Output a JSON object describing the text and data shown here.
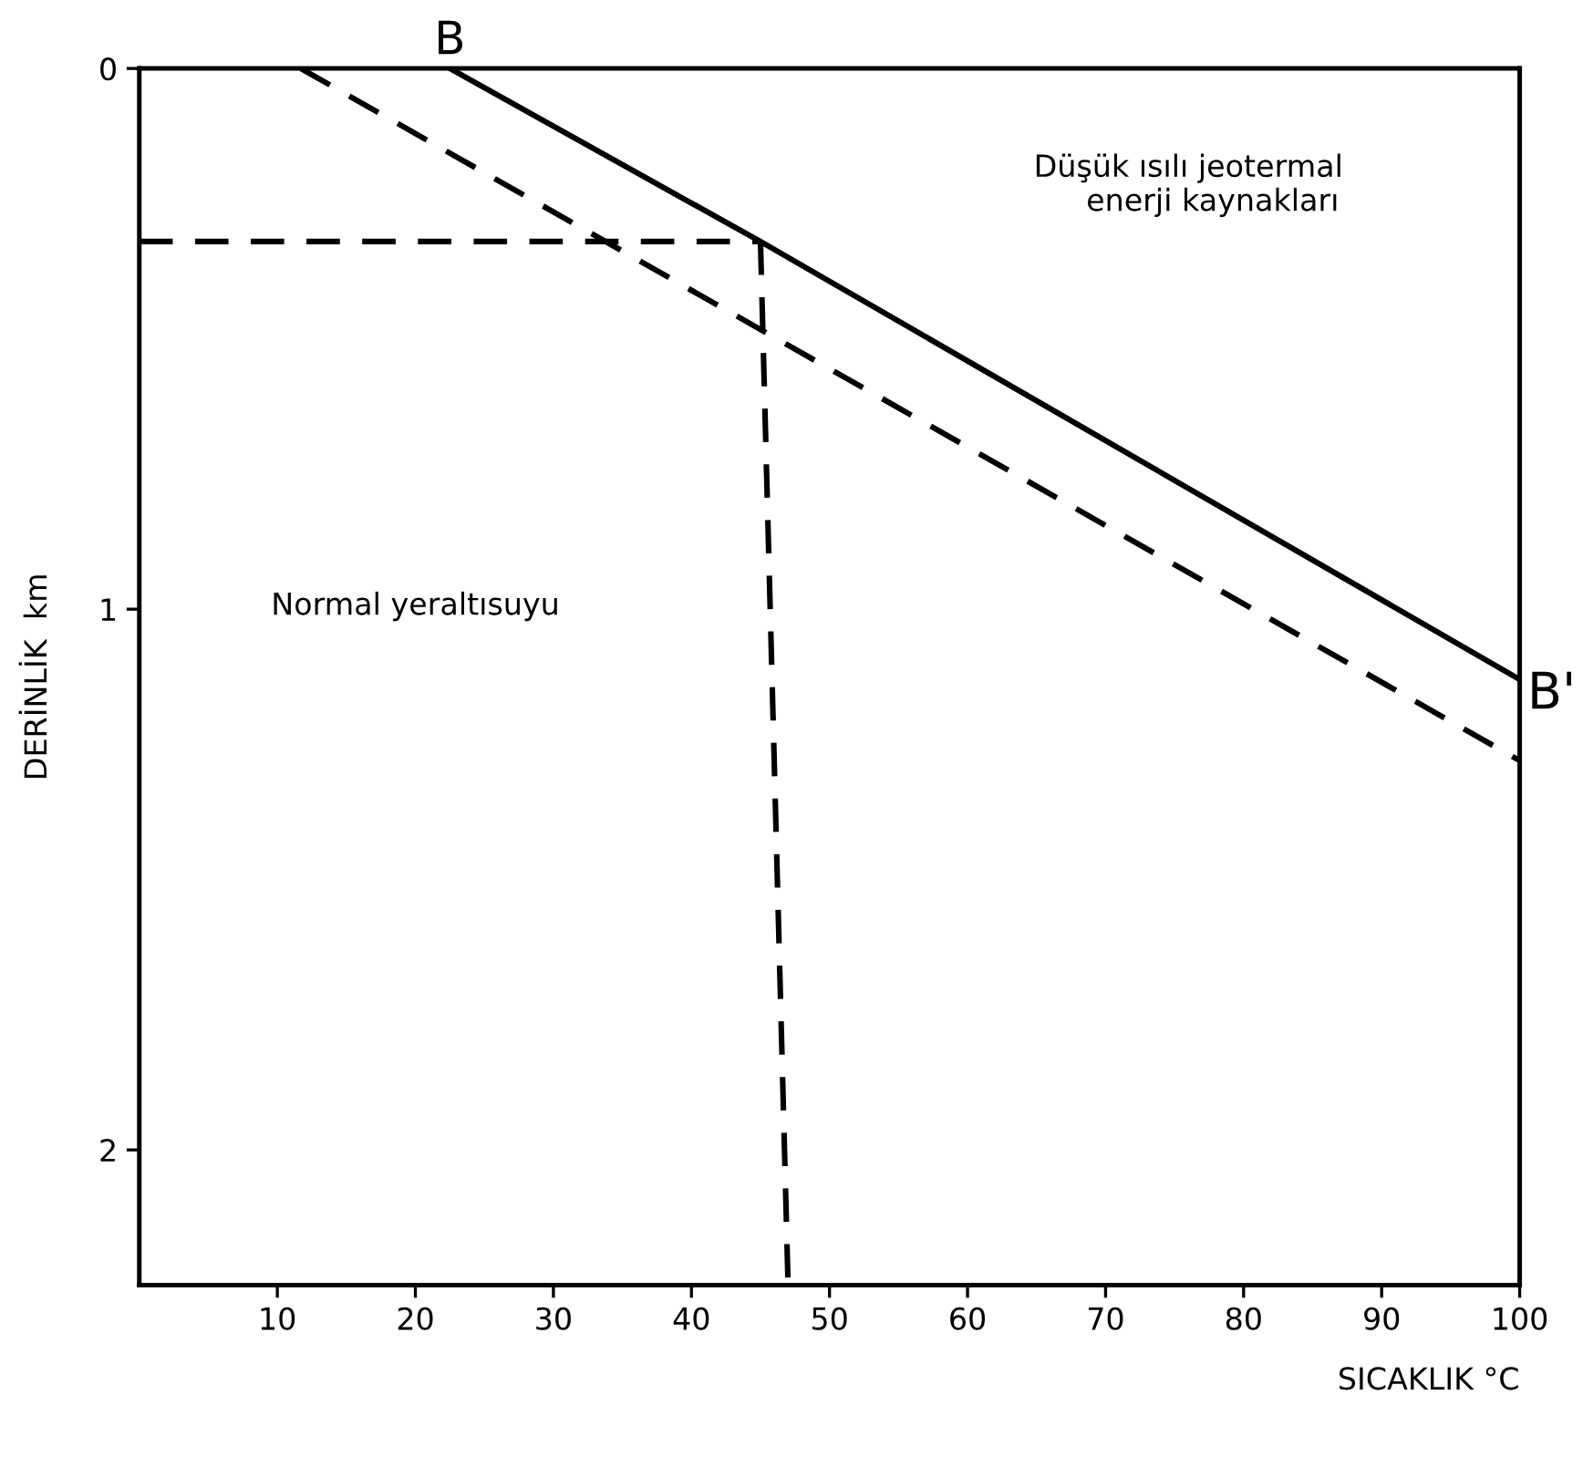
{
  "chart_data": {
    "type": "line",
    "xlabel": "SICAKLIK °C",
    "ylabel": "DERİNLİK  km",
    "xlim": [
      0,
      100
    ],
    "ylim": [
      2.25,
      0
    ],
    "xticks": [
      10,
      20,
      30,
      40,
      50,
      60,
      70,
      80,
      90,
      100
    ],
    "yticks": [
      0,
      1,
      2
    ],
    "grid": false,
    "marker": "none",
    "series": [
      {
        "color": "#000000",
        "line_style": "solid",
        "x": [
          22.5,
          45,
          100
        ],
        "values": [
          0,
          0.32,
          1.13
        ]
      },
      {
        "color": "#000000",
        "line_style": "dashed",
        "x": [
          11.7,
          100
        ],
        "values": [
          0,
          1.28
        ]
      },
      {
        "color": "#000000",
        "line_style": "dashed",
        "x": [
          0,
          45
        ],
        "values": [
          0.32,
          0.32
        ]
      },
      {
        "color": "#000000",
        "line_style": "dashed",
        "x": [
          45,
          47
        ],
        "values": [
          0.32,
          2.25
        ]
      }
    ],
    "annotations": [
      {
        "text": "B",
        "x": 22.5,
        "y": 0
      },
      {
        "text": "B'",
        "x": 100,
        "y": 1.13
      },
      "Düşük ısılı jeotermal\n     enerji kaynakları",
      "Normal yeraltısuyu"
    ]
  }
}
